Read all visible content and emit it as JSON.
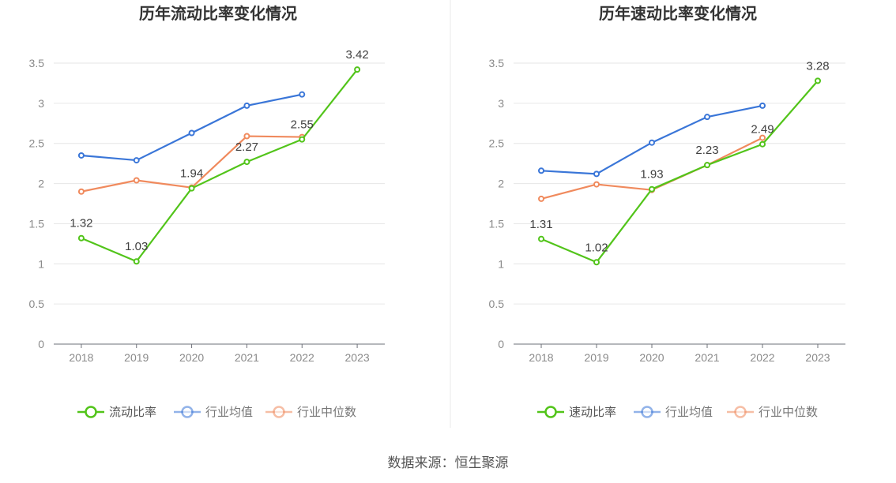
{
  "source_text": "数据来源：恒生聚源",
  "chart_data": [
    {
      "type": "line",
      "title": "历年流动比率变化情况",
      "categories": [
        "2018",
        "2019",
        "2020",
        "2021",
        "2022",
        "2023"
      ],
      "ylim": [
        0,
        3.5
      ],
      "yticks": [
        "0",
        "0.5",
        "1",
        "1.5",
        "2",
        "2.5",
        "3",
        "3.5"
      ],
      "grid": true,
      "legend_position": "bottom",
      "series": [
        {
          "name": "流动比率",
          "color": "#52c41a",
          "values": [
            1.32,
            1.03,
            1.94,
            2.27,
            2.55,
            3.42
          ],
          "labels": [
            "1.32",
            "1.03",
            "1.94",
            "2.27",
            "2.55",
            "3.42"
          ]
        },
        {
          "name": "行业均值",
          "color": "#3a76d8",
          "values": [
            2.35,
            2.29,
            2.63,
            2.97,
            3.11,
            null
          ]
        },
        {
          "name": "行业中位数",
          "color": "#f08a5d",
          "values": [
            1.9,
            2.04,
            1.95,
            2.59,
            2.58,
            null
          ]
        }
      ]
    },
    {
      "type": "line",
      "title": "历年速动比率变化情况",
      "categories": [
        "2018",
        "2019",
        "2020",
        "2021",
        "2022",
        "2023"
      ],
      "ylim": [
        0,
        3.5
      ],
      "yticks": [
        "0",
        "0.5",
        "1",
        "1.5",
        "2",
        "2.5",
        "3",
        "3.5"
      ],
      "grid": true,
      "legend_position": "bottom",
      "series": [
        {
          "name": "速动比率",
          "color": "#52c41a",
          "values": [
            1.31,
            1.02,
            1.93,
            2.23,
            2.49,
            3.28
          ],
          "labels": [
            "1.31",
            "1.02",
            "1.93",
            "2.23",
            "2.49",
            "3.28"
          ]
        },
        {
          "name": "行业均值",
          "color": "#3a76d8",
          "values": [
            2.16,
            2.12,
            2.51,
            2.83,
            2.97,
            null
          ]
        },
        {
          "name": "行业中位数",
          "color": "#f08a5d",
          "values": [
            1.81,
            1.99,
            1.92,
            2.23,
            2.57,
            null
          ]
        }
      ]
    }
  ]
}
